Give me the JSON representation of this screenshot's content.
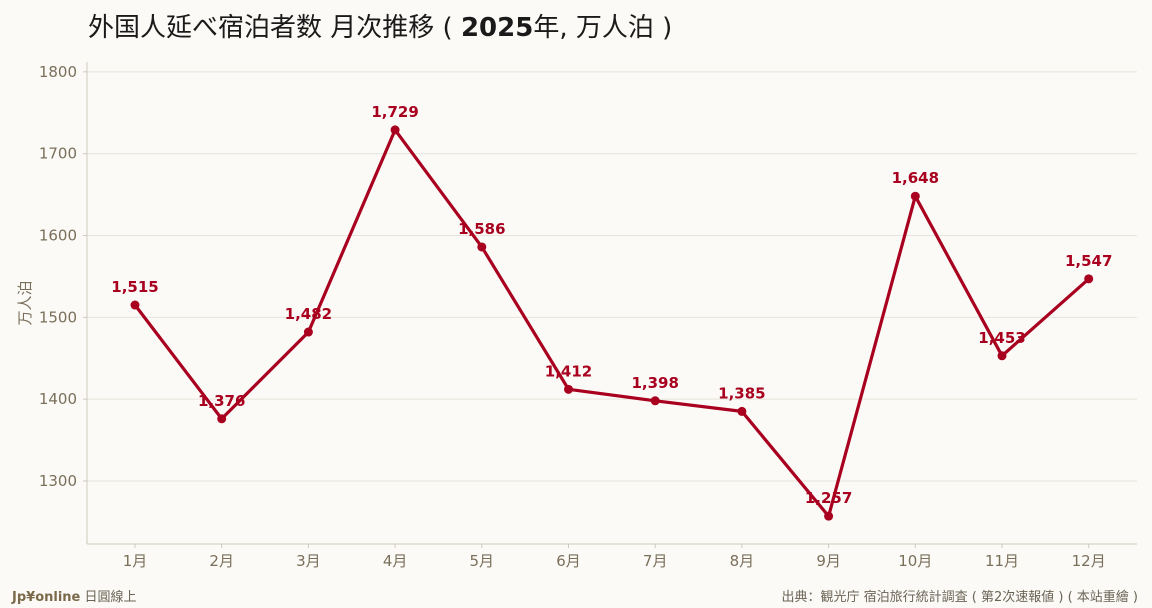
{
  "chart_data": {
    "type": "line",
    "title": {
      "main": "外国人延べ宿泊者数 月次推移",
      "paren_open": " ( ",
      "year": "2025",
      "year_unit": "年,",
      "unit": " 万人泊",
      "paren_close": " )"
    },
    "ylabel": "万人泊",
    "categories": [
      "1月",
      "2月",
      "3月",
      "4月",
      "5月",
      "6月",
      "7月",
      "8月",
      "9月",
      "10月",
      "11月",
      "12月"
    ],
    "values": [
      1515,
      1376,
      1482,
      1729,
      1586,
      1412,
      1398,
      1385,
      1257,
      1648,
      1453,
      1547
    ],
    "data_labels": [
      "1,515",
      "1,376",
      "1,482",
      "1,729",
      "1,586",
      "1,412",
      "1,398",
      "1,385",
      "1,257",
      "1,648",
      "1,453",
      "1,547"
    ],
    "ylim": [
      1223,
      1812
    ],
    "yticks": [
      1300,
      1400,
      1500,
      1600,
      1700,
      1800
    ],
    "grid": "horizontal",
    "legend": "none",
    "line_color": "#a8001e",
    "axis_text_color": "#7a6f5a",
    "grid_color": "#e8e4dc"
  },
  "footer": {
    "brand": "Jp¥online",
    "brand_suffix": " 日圓線上",
    "source": "出典：観光庁 宿泊旅行統計調査 ( 第2次速報値 ) ( 本站重繪 )"
  }
}
